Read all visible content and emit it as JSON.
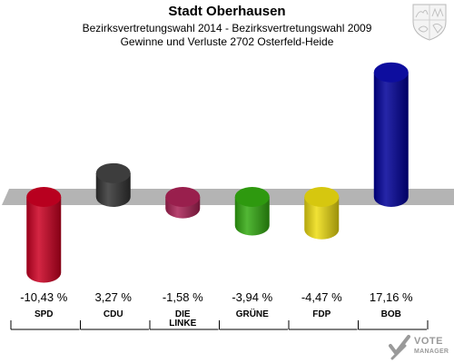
{
  "header": {
    "title": "Stadt Oberhausen",
    "subtitle_line1": "Bezirksvertretungswahl 2014 - Bezirksvertretungswahl 2009",
    "subtitle_line2": "Gewinne und Verluste 2702 Osterfeld-Heide"
  },
  "chart_data": {
    "type": "bar",
    "title": "Stadt Oberhausen",
    "categories": [
      "SPD",
      "CDU",
      "DIE LINKE",
      "GRÜNE",
      "FDP",
      "BOB"
    ],
    "category_lines": [
      [
        "SPD"
      ],
      [
        "CDU"
      ],
      [
        "DIE",
        "LINKE"
      ],
      [
        "GRÜNE"
      ],
      [
        "FDP"
      ],
      [
        "BOB"
      ]
    ],
    "values": [
      -10.43,
      3.27,
      -1.58,
      -3.94,
      -4.47,
      17.16
    ],
    "value_labels": [
      "-10,43 %",
      "3,27 %",
      "-1,58 %",
      "-3,94 %",
      "-4,47 %",
      "17,16 %"
    ],
    "colors": [
      "#cc0022",
      "#333333",
      "#aa2255",
      "#33aa11",
      "#eedd11",
      "#000099"
    ],
    "grid": false,
    "legend": "none"
  },
  "branding": {
    "line1": "VOTE",
    "line2": "MANAGER"
  },
  "icons": {
    "crest": "coat-of-arms-icon",
    "brand": "vote-manager-logo-icon"
  }
}
